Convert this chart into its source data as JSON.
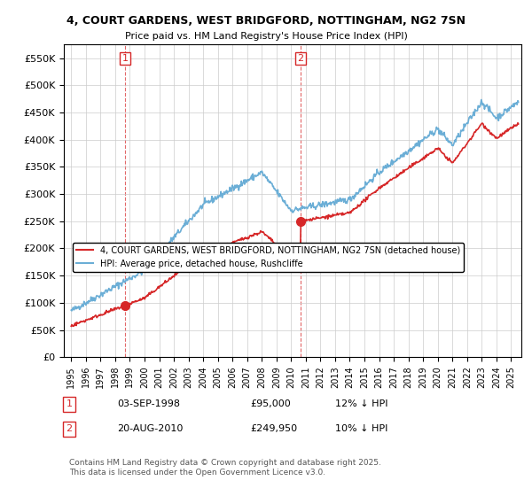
{
  "title_line1": "4, COURT GARDENS, WEST BRIDGFORD, NOTTINGHAM, NG2 7SN",
  "title_line2": "Price paid vs. HM Land Registry's House Price Index (HPI)",
  "xlabel": "",
  "ylabel": "",
  "ylim": [
    0,
    575000
  ],
  "yticks": [
    0,
    50000,
    100000,
    150000,
    200000,
    250000,
    300000,
    350000,
    400000,
    450000,
    500000,
    550000
  ],
  "ytick_labels": [
    "£0",
    "£50K",
    "£100K",
    "£150K",
    "£200K",
    "£250K",
    "£300K",
    "£350K",
    "£400K",
    "£450K",
    "£500K",
    "£550K"
  ],
  "hpi_color": "#6baed6",
  "sale_color": "#d62728",
  "marker1_x": 1998.67,
  "marker1_y": 95000,
  "marker1_label": "1",
  "marker1_date": "03-SEP-1998",
  "marker1_price": "£95,000",
  "marker1_hpi": "12% ↓ HPI",
  "marker2_x": 2010.63,
  "marker2_y": 249950,
  "marker2_label": "2",
  "marker2_date": "20-AUG-2010",
  "marker2_price": "£249,950",
  "marker2_hpi": "10% ↓ HPI",
  "legend_line1": "4, COURT GARDENS, WEST BRIDGFORD, NOTTINGHAM, NG2 7SN (detached house)",
  "legend_line2": "HPI: Average price, detached house, Rushcliffe",
  "footnote": "Contains HM Land Registry data © Crown copyright and database right 2025.\nThis data is licensed under the Open Government Licence v3.0.",
  "xlim_start": 1994.5,
  "xlim_end": 2025.7,
  "xtick_years": [
    1995,
    1996,
    1997,
    1998,
    1999,
    2000,
    2001,
    2002,
    2003,
    2004,
    2005,
    2006,
    2007,
    2008,
    2009,
    2010,
    2011,
    2012,
    2013,
    2014,
    2015,
    2016,
    2017,
    2018,
    2019,
    2020,
    2021,
    2022,
    2023,
    2024,
    2025
  ]
}
